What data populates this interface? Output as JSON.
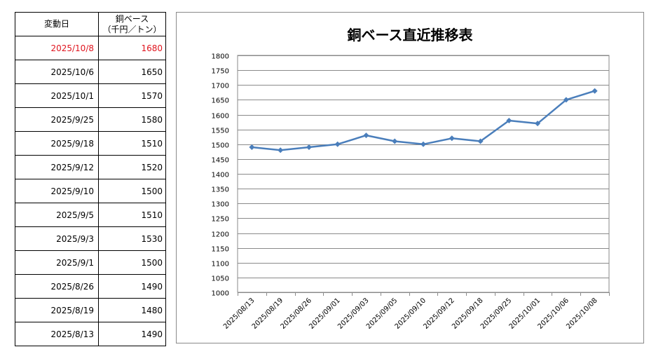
{
  "table": {
    "header_date": "変動日",
    "header_price_line1": "銅ベース",
    "header_price_line2": "（千円／トン）",
    "highlight_color": "#e0141e",
    "rows": [
      {
        "date": "2025/10/8",
        "price": "1680",
        "highlight": true
      },
      {
        "date": "2025/10/6",
        "price": "1650"
      },
      {
        "date": "2025/10/1",
        "price": "1570"
      },
      {
        "date": "2025/9/25",
        "price": "1580"
      },
      {
        "date": "2025/9/18",
        "price": "1510"
      },
      {
        "date": "2025/9/12",
        "price": "1520"
      },
      {
        "date": "2025/9/10",
        "price": "1500"
      },
      {
        "date": "2025/9/5",
        "price": "1510"
      },
      {
        "date": "2025/9/3",
        "price": "1530"
      },
      {
        "date": "2025/9/1",
        "price": "1500"
      },
      {
        "date": "2025/8/26",
        "price": "1490"
      },
      {
        "date": "2025/8/19",
        "price": "1480"
      },
      {
        "date": "2025/8/13",
        "price": "1490"
      }
    ]
  },
  "chart_data": {
    "type": "line",
    "title": "銅ベース直近推移表",
    "categories": [
      "2025/08/13",
      "2025/08/19",
      "2025/08/26",
      "2025/09/01",
      "2025/09/03",
      "2025/09/05",
      "2025/09/10",
      "2025/09/12",
      "2025/09/18",
      "2025/09/25",
      "2025/10/01",
      "2025/10/06",
      "2025/10/08"
    ],
    "series": [
      {
        "values": [
          1490,
          1480,
          1490,
          1500,
          1530,
          1510,
          1500,
          1520,
          1510,
          1580,
          1570,
          1650,
          1680
        ],
        "color": "#4a7ebb"
      }
    ],
    "ylim": [
      1000,
      1800
    ],
    "yticks": [
      1000,
      1050,
      1100,
      1150,
      1200,
      1250,
      1300,
      1350,
      1400,
      1450,
      1500,
      1550,
      1600,
      1650,
      1700,
      1750,
      1800
    ],
    "grid": true,
    "legend": "none",
    "marker": "diamond"
  }
}
